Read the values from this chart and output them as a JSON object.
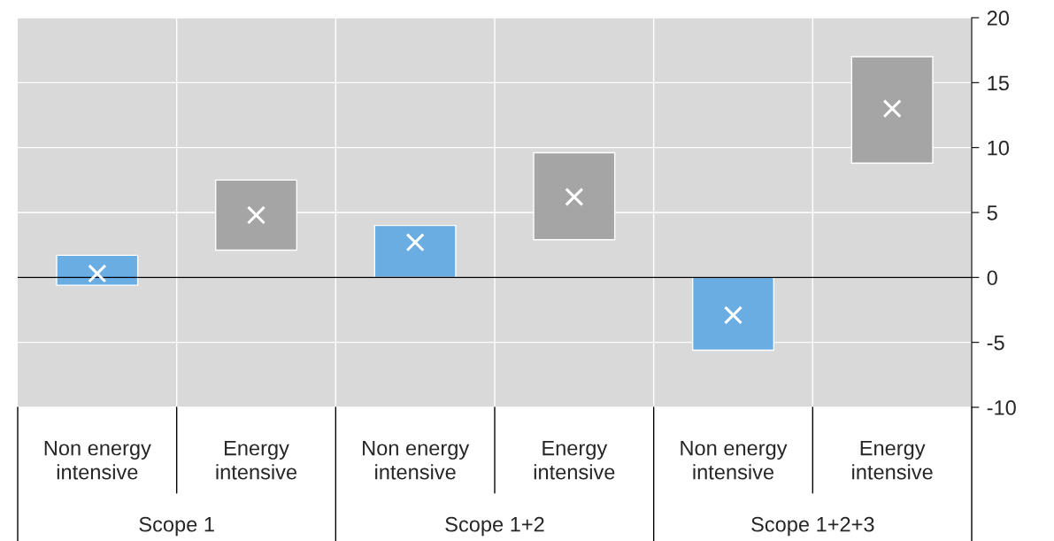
{
  "chart_data": {
    "type": "bar",
    "categories": [
      "Non energy\nintensive",
      "Energy\nintensive",
      "Non energy\nintensive",
      "Energy\nintensive",
      "Non energy\nintensive",
      "Energy\nintensive"
    ],
    "series": [
      {
        "base": [
          -0.6,
          2.1,
          0,
          2.9,
          -5.6,
          8.8
        ],
        "values": [
          2.3,
          5.4,
          4.0,
          6.7,
          5.6,
          8.2
        ],
        "colors": [
          "#69ade3",
          "#a5a5a5",
          "#69ade3",
          "#a5a5a5",
          "#69ade3",
          "#a5a5a5"
        ]
      },
      {
        "type": "scatter",
        "values": [
          0.3,
          4.8,
          2.7,
          6.2,
          -2.9,
          13.0
        ],
        "color": "#ffffff",
        "marker": "cross"
      }
    ],
    "annotations": [
      "Scope 1",
      "Scope 1+2",
      "Scope 1+2+3"
    ],
    "ylim": [
      -10,
      20
    ],
    "yticks": [
      -10,
      -5,
      0,
      5,
      10,
      15,
      20
    ],
    "grid": true,
    "legend": false
  }
}
